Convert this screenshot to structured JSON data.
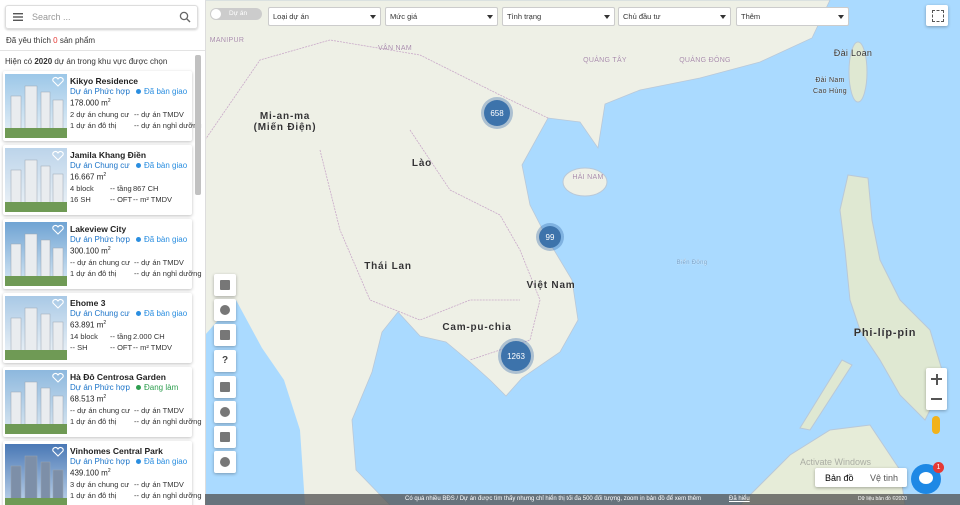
{
  "search": {
    "placeholder": "Search ..."
  },
  "favorites": {
    "prefix": "Đã yêu thích",
    "count": "0",
    "suffix": "sản phẩm"
  },
  "summary": {
    "prefix": "Hiện có",
    "count": "2020",
    "suffix": "dự án trong khu vực được chọn"
  },
  "projects": [
    {
      "name": "Kikyo Residence",
      "type": "Dự án Phức hợp",
      "status": "Đã bàn giao",
      "status_color": "#2a8ee0",
      "area": "178.000",
      "unit": "m",
      "unit_sup": "2",
      "row1": [
        "2 dự án chung cư",
        "-- dự án TMDV"
      ],
      "row2": [
        "1 dự án đô thị",
        "-- dự án nghỉ dưỡng"
      ]
    },
    {
      "name": "Jamila Khang Điền",
      "type": "Dự án Chung cư",
      "status": "Đã bàn giao",
      "status_color": "#2a8ee0",
      "area": "16.667",
      "unit": "m",
      "unit_sup": "2",
      "row1": [
        "4 block",
        "-- tầng",
        "867 CH"
      ],
      "row2": [
        "16 SH",
        "-- OFT",
        "-- m² TMDV"
      ]
    },
    {
      "name": "Lakeview City",
      "type": "Dự án Phức hợp",
      "status": "Đã bàn giao",
      "status_color": "#2a8ee0",
      "area": "300.100",
      "unit": "m",
      "unit_sup": "2",
      "row1": [
        "-- dự án chung cư",
        "-- dự án TMDV"
      ],
      "row2": [
        "1 dự án đô thị",
        "-- dự án nghỉ dưỡng"
      ]
    },
    {
      "name": "Ehome 3",
      "type": "Dự án Chung cư",
      "status": "Đã bàn giao",
      "status_color": "#2a8ee0",
      "area": "63.891",
      "unit": "m",
      "unit_sup": "2",
      "row1": [
        "14 block",
        "-- tầng",
        "2.000 CH"
      ],
      "row2": [
        "-- SH",
        "-- OFT",
        "-- m² TMDV"
      ]
    },
    {
      "name": "Hà Đô Centrosa Garden",
      "type": "Dự án Phức hợp",
      "status": "Đang làm",
      "status_color": "#2e9e4f",
      "area": "68.513",
      "unit": "m",
      "unit_sup": "2",
      "row1": [
        "-- dự án chung cư",
        "-- dự án TMDV"
      ],
      "row2": [
        "1 dự án đô thị",
        "-- dự án nghỉ dưỡng"
      ]
    },
    {
      "name": "Vinhomes Central Park",
      "type": "Dự án Phức hợp",
      "status": "Đã bàn giao",
      "status_color": "#2a8ee0",
      "area": "439.100",
      "unit": "m",
      "unit_sup": "2",
      "row1": [
        "3 dự án chung cư",
        "-- dự án TMDV"
      ],
      "row2": [
        "1 dự án đô thị",
        "-- dự án nghỉ dưỡng"
      ]
    }
  ],
  "filters": {
    "toggle": "Dự án",
    "dropdowns": [
      "Loại dự án",
      "Mức giá",
      "Tình trạng",
      "Chủ đầu tư",
      "Thêm"
    ]
  },
  "clusters": [
    "658",
    "99",
    "1263"
  ],
  "map_labels": [
    "VÂN NAM",
    "QUẢNG TÂY",
    "QUẢNG ĐÔNG",
    "Đài Loan",
    "Đài Nam",
    "Cao Hùng",
    "MANIPUR",
    "Mi-an-ma",
    "(Miến Điện)",
    "Lào",
    "Thái Lan",
    "Việt Nam",
    "Cam-pu-chia",
    "Phi-líp-pin",
    "HẢI NAM",
    "Biển Đông"
  ],
  "tools": {
    "help": "?"
  },
  "map_types": [
    "Bản đồ",
    "Vệ tinh"
  ],
  "chat_badge": "1",
  "watermark": "Activate Windows",
  "attribution": "Dữ liệu bản đồ ©2020",
  "notice": {
    "text": "Có quá nhiều BĐS / Dự án được tìm thấy nhưng chỉ hiển thị tối đa 500 đối tượng, zoom in bản đồ để xem thêm",
    "action": "Đã hiểu"
  }
}
